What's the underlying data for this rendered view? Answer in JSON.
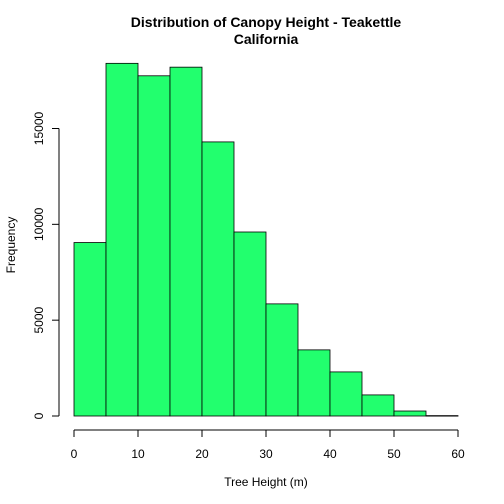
{
  "chart_data": {
    "type": "bar",
    "title": "Distribution of Canopy Height - Teakettle\nCalifornia",
    "xlabel": "Tree Height (m)",
    "ylabel": "Frequency",
    "xlim": [
      0,
      60
    ],
    "ylim": [
      0,
      18000
    ],
    "x_ticks": [
      0,
      10,
      20,
      30,
      40,
      50,
      60
    ],
    "y_ticks": [
      0,
      5000,
      10000,
      15000
    ],
    "bin_edges": [
      0,
      5,
      10,
      15,
      20,
      25,
      30,
      35,
      40,
      45,
      50,
      55,
      60
    ],
    "values": [
      9050,
      18400,
      17750,
      18200,
      14300,
      9600,
      5850,
      3450,
      2300,
      1100,
      260,
      20
    ],
    "bar_color": "#22ff6e",
    "grid": false,
    "legend": "none"
  }
}
